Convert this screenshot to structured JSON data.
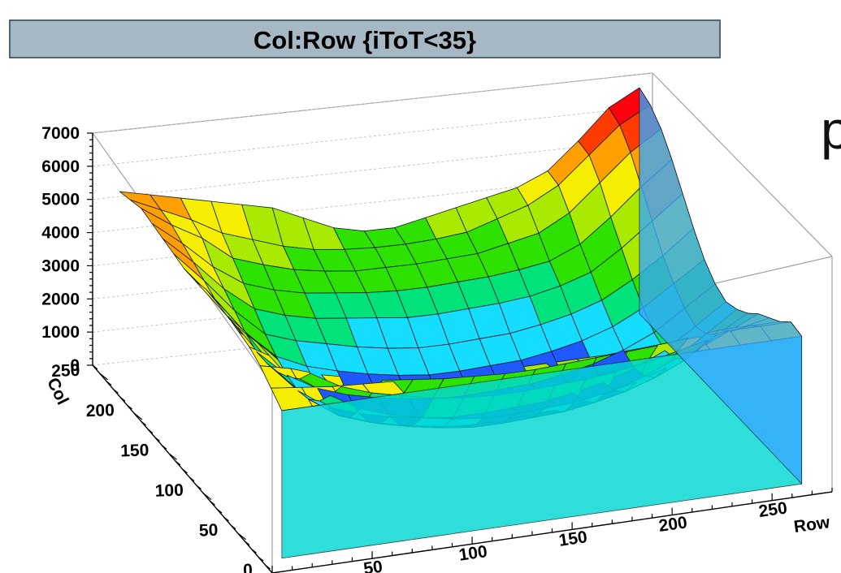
{
  "chart_data": {
    "type": "surface",
    "title": "Col:Row {iToT<35}",
    "xlabel": "Row",
    "ylabel": "Col",
    "zlabel": "",
    "xlim": [
      0,
      280
    ],
    "ylim": [
      0,
      260
    ],
    "zlim": [
      0,
      7000
    ],
    "x_ticks": [
      "0",
      "50",
      "100",
      "150",
      "200",
      "250"
    ],
    "y_ticks": [
      "0",
      "50",
      "100",
      "150",
      "200",
      "250"
    ],
    "z_ticks": [
      "0",
      "1000",
      "2000",
      "3000",
      "4000",
      "5000",
      "6000",
      "7000"
    ],
    "grid": true,
    "colormap": [
      "#5a14ff",
      "#1f58ff",
      "#14ddff",
      "#00e37a",
      "#2ee200",
      "#a9ea00",
      "#f6ee00",
      "#ff9f00",
      "#ff3a00",
      "#ff000c"
    ],
    "surface_values": [
      [
        5400,
        5200,
        5000,
        4800,
        4600,
        4400,
        4000,
        3600,
        3400,
        3400,
        3600,
        3800,
        4000,
        4200,
        4600,
        5400,
        6300,
        6800
      ],
      [
        5500,
        5100,
        4700,
        4200,
        3900,
        3600,
        3400,
        3300,
        3250,
        3250,
        3300,
        3400,
        3700,
        4000,
        4500,
        5300,
        6100,
        6600
      ],
      [
        5600,
        5000,
        4500,
        3800,
        3500,
        3250,
        3100,
        3000,
        3000,
        3000,
        3050,
        3100,
        3300,
        3500,
        4000,
        4800,
        5600,
        6200
      ],
      [
        5500,
        4800,
        4000,
        3400,
        3100,
        2900,
        2800,
        2700,
        2650,
        2650,
        2700,
        2750,
        2850,
        3000,
        3400,
        4100,
        4900,
        5600
      ],
      [
        5400,
        4600,
        3700,
        3000,
        2700,
        2500,
        2400,
        2300,
        2200,
        2200,
        2250,
        2300,
        2400,
        2600,
        2900,
        3500,
        4200,
        4900
      ],
      [
        5300,
        4400,
        3400,
        2600,
        2300,
        2100,
        1900,
        1750,
        1650,
        1650,
        1700,
        1750,
        1900,
        2100,
        2400,
        2900,
        3500,
        4200
      ],
      [
        5200,
        4200,
        3100,
        2300,
        1900,
        1650,
        1450,
        1300,
        1200,
        1200,
        1250,
        1300,
        1450,
        1650,
        1950,
        2400,
        3000,
        3600
      ],
      [
        5200,
        4100,
        2900,
        2100,
        1600,
        1300,
        1100,
        950,
        850,
        850,
        900,
        950,
        1100,
        1300,
        1600,
        2000,
        2600,
        3200
      ],
      [
        5300,
        4100,
        2900,
        2000,
        1400,
        1100,
        900,
        750,
        650,
        650,
        700,
        750,
        900,
        1100,
        1400,
        1800,
        2400,
        3000
      ],
      [
        5300,
        4200,
        3000,
        2100,
        1500,
        1200,
        1000,
        850,
        750,
        750,
        800,
        850,
        1000,
        1200,
        1500,
        1900,
        2500,
        3100
      ],
      [
        5200,
        4300,
        3200,
        2400,
        1800,
        1500,
        1300,
        1150,
        1050,
        1050,
        1100,
        1150,
        1300,
        1500,
        1800,
        2200,
        2800,
        3300
      ],
      [
        5100,
        4400,
        3500,
        2900,
        2400,
        2100,
        1900,
        1750,
        1650,
        1650,
        1700,
        1750,
        1900,
        2100,
        2400,
        2800,
        3200,
        3600
      ],
      [
        5000,
        4500,
        4000,
        3500,
        3200,
        3000,
        2800,
        2700,
        2650,
        2650,
        2700,
        2750,
        2850,
        3000,
        3200,
        3400,
        3600,
        3800
      ],
      [
        4800,
        4600,
        4300,
        4100,
        3900,
        3800,
        3700,
        3650,
        3600,
        3600,
        3650,
        3700,
        3750,
        3800,
        3900,
        4000,
        4000,
        4000
      ],
      [
        4500,
        4400,
        4300,
        4250,
        4200,
        4150,
        4100,
        4100,
        4100,
        4100,
        4100,
        4100,
        4150,
        4200,
        4250,
        4300,
        4300,
        4300
      ],
      [
        4200,
        4200,
        4200,
        4200,
        4200,
        4200,
        4200,
        4200,
        4200,
        4200,
        4200,
        4200,
        4200,
        4200,
        4200,
        4200,
        4200,
        4200
      ]
    ],
    "side_text": "p"
  }
}
